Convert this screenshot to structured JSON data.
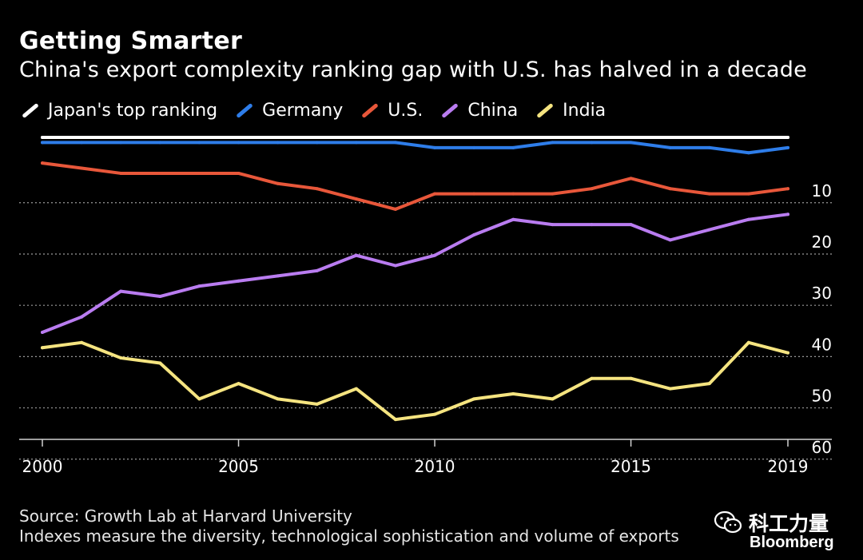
{
  "header": {
    "title": "Getting Smarter",
    "subtitle": "China's export complexity ranking gap with U.S. has halved in a decade"
  },
  "footer": {
    "source": "Source: Growth Lab at Harvard University",
    "note": "Indexes measure the diversity, technological sophistication and volume of exports",
    "wechat_label": "科工力量",
    "brand": "Bloomberg"
  },
  "colors": {
    "background": "#000000",
    "grid": "#9a9a9a",
    "text": "#ffffff"
  },
  "chart_data": {
    "type": "line",
    "title": "Getting Smarter",
    "subtitle": "China's export complexity ranking gap with U.S. has halved in a decade",
    "xlabel": "",
    "ylabel": "",
    "x": [
      2000,
      2001,
      2002,
      2003,
      2004,
      2005,
      2006,
      2007,
      2008,
      2009,
      2010,
      2011,
      2012,
      2013,
      2014,
      2015,
      2016,
      2017,
      2018,
      2019
    ],
    "x_ticks": [
      2000,
      2005,
      2010,
      2015,
      2019
    ],
    "y_ticks": [
      10,
      20,
      30,
      40,
      50,
      60
    ],
    "ylim": [
      1,
      63
    ],
    "y_inverted": true,
    "y_axis_side": "right",
    "grid": true,
    "legend_position": "top",
    "series": [
      {
        "name": "Japan's top ranking",
        "color": "#ffffff",
        "values": [
          1,
          1,
          1,
          1,
          1,
          1,
          1,
          1,
          1,
          1,
          1,
          1,
          1,
          1,
          1,
          1,
          1,
          1,
          1,
          1
        ]
      },
      {
        "name": "Germany",
        "color": "#2e7de9",
        "values": [
          2,
          2,
          2,
          2,
          2,
          2,
          2,
          2,
          2,
          2,
          3,
          3,
          3,
          2,
          2,
          2,
          3,
          3,
          4,
          3
        ]
      },
      {
        "name": "U.S.",
        "color": "#e8573a",
        "values": [
          6,
          7,
          8,
          8,
          8,
          8,
          10,
          11,
          13,
          15,
          12,
          12,
          12,
          12,
          11,
          9,
          11,
          12,
          12,
          11
        ]
      },
      {
        "name": "China",
        "color": "#b97cf0",
        "values": [
          39,
          36,
          31,
          32,
          30,
          29,
          28,
          27,
          24,
          26,
          24,
          20,
          17,
          18,
          18,
          18,
          21,
          19,
          17,
          16
        ]
      },
      {
        "name": "India",
        "color": "#f5e480",
        "values": [
          42,
          41,
          44,
          45,
          52,
          49,
          52,
          53,
          50,
          56,
          55,
          52,
          51,
          52,
          48,
          48,
          50,
          49,
          41,
          43
        ]
      }
    ]
  }
}
